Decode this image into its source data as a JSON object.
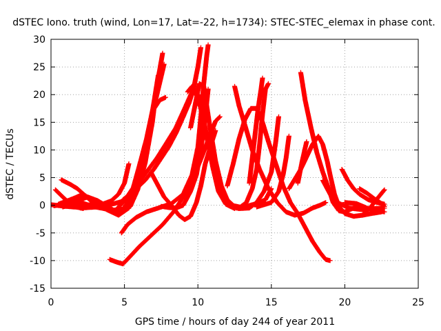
{
  "chart_data": {
    "type": "scatter",
    "title": "dSTEC Iono. truth (wind, Lon=17, Lat=-22, h=1734): STEC-STEC_elemax in phase cont.",
    "xlabel": "GPS time / hours of day 244 of year 2011",
    "ylabel": "dSTEC  / TECUs",
    "xlim": [
      0,
      25
    ],
    "ylim": [
      -15,
      30
    ],
    "xticks": [
      "0",
      "5",
      "10",
      "15",
      "20",
      "25"
    ],
    "yticks": [
      "-15",
      "-10",
      "-5",
      "0",
      "5",
      "10",
      "15",
      "20",
      "25",
      "30"
    ],
    "grid": true,
    "marker": "+",
    "color": "#ff0000",
    "series": [
      {
        "points": [
          [
            0.0,
            0.1
          ],
          [
            1.0,
            -0.2
          ],
          [
            2.0,
            -0.4
          ],
          [
            2.8,
            0.2
          ],
          [
            3.3,
            0.6
          ]
        ]
      },
      {
        "points": [
          [
            0.3,
            2.8
          ],
          [
            0.8,
            1.5
          ],
          [
            1.2,
            0.5
          ],
          [
            1.7,
            -0.3
          ],
          [
            2.2,
            -0.6
          ]
        ]
      },
      {
        "points": [
          [
            0.7,
            4.6
          ],
          [
            1.3,
            3.8
          ],
          [
            1.8,
            3.0
          ],
          [
            2.3,
            1.8
          ],
          [
            2.8,
            0.6
          ],
          [
            3.3,
            -0.3
          ]
        ]
      },
      {
        "points": [
          [
            1.3,
            0.0
          ],
          [
            2.5,
            -0.2
          ],
          [
            3.5,
            0.2
          ],
          [
            4.1,
            0.8
          ],
          [
            4.6,
            2.0
          ],
          [
            5.0,
            4.0
          ],
          [
            5.3,
            7.5
          ]
        ]
      },
      {
        "points": [
          [
            0.2,
            -0.1
          ],
          [
            1.5,
            0.5
          ],
          [
            2.5,
            1.5
          ],
          [
            3.2,
            0.8
          ],
          [
            4.0,
            -0.5
          ],
          [
            4.7,
            -1.5
          ],
          [
            5.4,
            -0.2
          ],
          [
            5.9,
            2.8
          ],
          [
            6.4,
            7.5
          ],
          [
            6.9,
            15.0
          ],
          [
            7.2,
            21.5
          ],
          [
            7.6,
            27.5
          ]
        ]
      },
      {
        "points": [
          [
            0.5,
            0.2
          ],
          [
            1.5,
            1.2
          ],
          [
            2.2,
            2.0
          ],
          [
            3.0,
            0.5
          ],
          [
            3.8,
            -0.8
          ],
          [
            4.6,
            -1.8
          ],
          [
            5.3,
            -0.5
          ],
          [
            5.8,
            3.0
          ],
          [
            6.3,
            8.0
          ],
          [
            6.7,
            14.0
          ],
          [
            7.0,
            18.5
          ],
          [
            7.3,
            23.5
          ]
        ]
      },
      {
        "points": [
          [
            0.8,
            -0.3
          ],
          [
            2.0,
            0.5
          ],
          [
            3.0,
            -0.3
          ],
          [
            4.2,
            -0.9
          ],
          [
            4.9,
            -0.7
          ],
          [
            5.3,
            0.8
          ],
          [
            6.0,
            5.5
          ],
          [
            6.5,
            11.0
          ],
          [
            6.9,
            16.5
          ],
          [
            7.3,
            21.0
          ],
          [
            7.7,
            25.5
          ]
        ]
      },
      {
        "points": [
          [
            2.0,
            -0.5
          ],
          [
            3.2,
            -0.3
          ],
          [
            4.3,
            0.3
          ],
          [
            5.0,
            0.8
          ],
          [
            5.6,
            3.2
          ],
          [
            6.0,
            7.0
          ],
          [
            6.5,
            12.0
          ],
          [
            6.9,
            17.0
          ],
          [
            7.4,
            19.0
          ],
          [
            7.8,
            19.5
          ]
        ]
      },
      {
        "points": [
          [
            4.0,
            -9.8
          ],
          [
            4.5,
            -10.3
          ],
          [
            4.9,
            -10.6
          ],
          [
            5.3,
            -9.5
          ],
          [
            6.0,
            -7.5
          ],
          [
            6.8,
            -5.5
          ],
          [
            7.6,
            -3.5
          ],
          [
            8.4,
            -1.0
          ],
          [
            9.0,
            1.5
          ],
          [
            9.7,
            5.0
          ],
          [
            10.3,
            9.0
          ],
          [
            10.8,
            12.5
          ],
          [
            11.2,
            15.2
          ],
          [
            11.5,
            16.0
          ]
        ]
      },
      {
        "points": [
          [
            4.8,
            -5.0
          ],
          [
            5.2,
            -3.5
          ],
          [
            5.8,
            -2.2
          ],
          [
            6.5,
            -1.2
          ],
          [
            7.3,
            -0.5
          ],
          [
            8.2,
            0.3
          ],
          [
            9.0,
            2.0
          ],
          [
            9.6,
            5.5
          ],
          [
            10.0,
            10.5
          ],
          [
            10.2,
            16.0
          ],
          [
            10.4,
            22.0
          ],
          [
            10.6,
            27.0
          ],
          [
            10.7,
            29.0
          ]
        ]
      },
      {
        "points": [
          [
            4.9,
            1.0
          ],
          [
            5.6,
            2.5
          ],
          [
            6.4,
            4.5
          ],
          [
            7.0,
            6.5
          ],
          [
            7.5,
            8.5
          ],
          [
            8.0,
            10.5
          ],
          [
            8.5,
            13.0
          ],
          [
            9.0,
            16.0
          ],
          [
            9.4,
            18.5
          ],
          [
            9.7,
            21.0
          ],
          [
            10.0,
            25.0
          ],
          [
            10.2,
            28.5
          ]
        ]
      },
      {
        "points": [
          [
            4.3,
            -1.2
          ],
          [
            5.0,
            0.8
          ],
          [
            5.8,
            3.5
          ],
          [
            6.5,
            6.0
          ],
          [
            7.2,
            8.5
          ],
          [
            7.8,
            11.0
          ],
          [
            8.5,
            14.0
          ],
          [
            9.1,
            17.5
          ],
          [
            9.6,
            20.5
          ],
          [
            10.0,
            20.0
          ],
          [
            10.5,
            14.0
          ],
          [
            11.0,
            7.0
          ],
          [
            11.4,
            2.5
          ],
          [
            11.9,
            0.2
          ],
          [
            12.5,
            -0.6
          ]
        ]
      },
      {
        "points": [
          [
            6.8,
            6.0
          ],
          [
            7.2,
            4.0
          ],
          [
            7.7,
            1.5
          ],
          [
            8.2,
            0.0
          ],
          [
            8.7,
            -1.8
          ],
          [
            9.1,
            -2.6
          ],
          [
            9.5,
            -2.0
          ],
          [
            9.9,
            0.5
          ],
          [
            10.2,
            3.5
          ],
          [
            10.5,
            7.5
          ],
          [
            10.9,
            11.0
          ],
          [
            11.2,
            13.5
          ]
        ]
      },
      {
        "points": [
          [
            7.5,
            -0.2
          ],
          [
            8.0,
            -0.4
          ],
          [
            8.5,
            -0.5
          ],
          [
            9.0,
            0.0
          ],
          [
            9.5,
            2.5
          ],
          [
            9.9,
            5.5
          ],
          [
            10.2,
            10.0
          ],
          [
            10.5,
            16.0
          ],
          [
            10.7,
            21.0
          ]
        ]
      },
      {
        "points": [
          [
            9.3,
            20.5
          ],
          [
            9.6,
            21.5
          ],
          [
            9.9,
            20.0
          ],
          [
            10.2,
            17.5
          ],
          [
            10.5,
            13.5
          ],
          [
            10.9,
            8.5
          ],
          [
            11.3,
            4.0
          ],
          [
            11.7,
            1.5
          ],
          [
            12.3,
            0.0
          ],
          [
            13.0,
            -0.4
          ],
          [
            14.0,
            0.3
          ],
          [
            14.6,
            1.0
          ],
          [
            15.0,
            3.0
          ]
        ]
      },
      {
        "points": [
          [
            9.5,
            14.0
          ],
          [
            9.8,
            18.0
          ],
          [
            10.1,
            22.0
          ],
          [
            10.4,
            21.5
          ],
          [
            10.8,
            14.5
          ],
          [
            11.2,
            8.0
          ],
          [
            11.6,
            3.5
          ],
          [
            12.0,
            1.0
          ],
          [
            12.6,
            -0.5
          ]
        ]
      },
      {
        "points": [
          [
            12.5,
            21.5
          ],
          [
            12.8,
            18.0
          ],
          [
            13.2,
            14.5
          ],
          [
            13.7,
            10.0
          ],
          [
            14.2,
            6.5
          ],
          [
            14.8,
            3.0
          ],
          [
            15.4,
            0.5
          ],
          [
            16.0,
            -1.2
          ],
          [
            16.6,
            -1.8
          ],
          [
            17.2,
            -1.4
          ],
          [
            17.8,
            -0.5
          ],
          [
            18.3,
            0.0
          ],
          [
            18.7,
            0.5
          ]
        ]
      },
      {
        "points": [
          [
            12.0,
            3.5
          ],
          [
            12.4,
            7.5
          ],
          [
            12.8,
            12.0
          ],
          [
            13.2,
            15.5
          ],
          [
            13.6,
            17.5
          ],
          [
            14.0,
            17.5
          ],
          [
            14.4,
            15.0
          ],
          [
            14.8,
            11.5
          ],
          [
            15.3,
            7.5
          ],
          [
            15.8,
            3.5
          ],
          [
            16.3,
            0.5
          ],
          [
            16.8,
            -1.5
          ],
          [
            17.3,
            -4.0
          ],
          [
            17.8,
            -6.5
          ],
          [
            18.3,
            -8.5
          ],
          [
            18.7,
            -9.8
          ],
          [
            19.0,
            -10.0
          ]
        ]
      },
      {
        "points": [
          [
            12.8,
            -0.5
          ],
          [
            13.3,
            0.5
          ],
          [
            13.7,
            3.0
          ],
          [
            14.0,
            6.5
          ],
          [
            14.2,
            11.0
          ],
          [
            14.4,
            16.5
          ],
          [
            14.6,
            21.0
          ],
          [
            14.8,
            22.0
          ]
        ]
      },
      {
        "points": [
          [
            13.5,
            4.0
          ],
          [
            13.7,
            8.5
          ],
          [
            13.9,
            13.0
          ],
          [
            14.1,
            17.5
          ],
          [
            14.3,
            21.0
          ],
          [
            14.4,
            23.0
          ]
        ]
      },
      {
        "points": [
          [
            12.2,
            -0.2
          ],
          [
            12.8,
            -0.6
          ],
          [
            13.5,
            -0.5
          ],
          [
            14.0,
            0.5
          ],
          [
            14.5,
            2.5
          ],
          [
            15.0,
            6.0
          ],
          [
            15.3,
            11.5
          ],
          [
            15.5,
            16.0
          ]
        ]
      },
      {
        "points": [
          [
            14.0,
            -0.3
          ],
          [
            15.0,
            0.5
          ],
          [
            15.5,
            2.5
          ],
          [
            15.8,
            5.5
          ],
          [
            16.0,
            8.5
          ],
          [
            16.2,
            12.5
          ]
        ]
      },
      {
        "points": [
          [
            16.8,
            4.0
          ],
          [
            17.1,
            8.0
          ],
          [
            17.4,
            11.5
          ]
        ]
      },
      {
        "points": [
          [
            17.0,
            24.0
          ],
          [
            17.3,
            19.0
          ],
          [
            17.7,
            14.0
          ],
          [
            18.1,
            9.5
          ],
          [
            18.5,
            6.0
          ],
          [
            18.9,
            3.0
          ],
          [
            19.2,
            0.5
          ],
          [
            19.6,
            -1.0
          ],
          [
            20.0,
            -1.2
          ],
          [
            20.5,
            -0.6
          ],
          [
            21.0,
            0.0
          ]
        ]
      },
      {
        "points": [
          [
            16.2,
            3.0
          ],
          [
            17.0,
            6.5
          ],
          [
            17.8,
            11.0
          ],
          [
            18.2,
            12.5
          ],
          [
            18.5,
            11.0
          ],
          [
            18.8,
            8.0
          ],
          [
            19.0,
            5.5
          ],
          [
            19.3,
            2.0
          ],
          [
            19.6,
            -0.2
          ],
          [
            20.0,
            -1.5
          ],
          [
            20.6,
            -2.0
          ],
          [
            21.2,
            -1.8
          ],
          [
            21.8,
            -1.5
          ],
          [
            22.5,
            -1.2
          ]
        ]
      },
      {
        "points": [
          [
            18.5,
            4.5
          ],
          [
            19.0,
            2.0
          ],
          [
            19.5,
            0.5
          ],
          [
            20.3,
            -0.5
          ],
          [
            21.2,
            -0.8
          ],
          [
            22.0,
            -0.6
          ],
          [
            22.7,
            -0.5
          ]
        ]
      },
      {
        "points": [
          [
            19.8,
            6.5
          ],
          [
            20.2,
            4.5
          ],
          [
            20.6,
            3.0
          ],
          [
            21.0,
            2.0
          ],
          [
            21.6,
            1.0
          ],
          [
            22.2,
            0.5
          ],
          [
            22.7,
            0.2
          ]
        ]
      },
      {
        "points": [
          [
            21.2,
            -1.8
          ],
          [
            21.8,
            -0.2
          ],
          [
            22.3,
            1.5
          ],
          [
            22.7,
            2.8
          ]
        ]
      },
      {
        "points": [
          [
            20.0,
            0.5
          ],
          [
            20.8,
            0.3
          ],
          [
            21.5,
            -0.5
          ],
          [
            22.2,
            -1.0
          ],
          [
            22.7,
            -1.2
          ]
        ]
      },
      {
        "points": [
          [
            21.0,
            3.0
          ],
          [
            21.5,
            2.2
          ],
          [
            22.0,
            1.2
          ],
          [
            22.5,
            0.3
          ],
          [
            22.7,
            -0.2
          ]
        ]
      }
    ]
  }
}
